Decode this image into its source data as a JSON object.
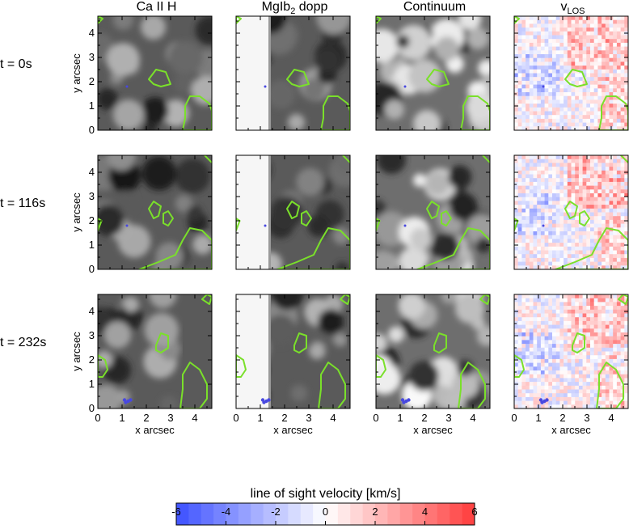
{
  "columns": [
    {
      "label": "Ca II H",
      "kind": "cah"
    },
    {
      "label": "MgIb",
      "sub": "2",
      "suffix": " dopp",
      "kind": "mg"
    },
    {
      "label": "Continuum",
      "kind": "cont"
    },
    {
      "label": "v",
      "sub": "LOS",
      "suffix": "",
      "kind": "vlos"
    }
  ],
  "rows": [
    {
      "label": "t = 0s"
    },
    {
      "label": "t = 116s"
    },
    {
      "label": "t = 232s"
    }
  ],
  "axes": {
    "xlabel": "x arcsec",
    "ylabel": "y arcsec",
    "xticks": [
      "0",
      "1",
      "2",
      "3",
      "4"
    ],
    "yticks": [
      "0",
      "1",
      "2",
      "3",
      "4"
    ],
    "range": [
      0,
      4.7
    ]
  },
  "colorbar": {
    "title": "line of sight velocity [km/s]",
    "min": -6,
    "max": 6,
    "ticks": [
      "-6",
      "-4",
      "-2",
      "0",
      "2",
      "4",
      "6"
    ]
  },
  "colors": {
    "contour": "#7ae02a",
    "negative": "#0000ff",
    "positive": "#ff0000"
  }
}
